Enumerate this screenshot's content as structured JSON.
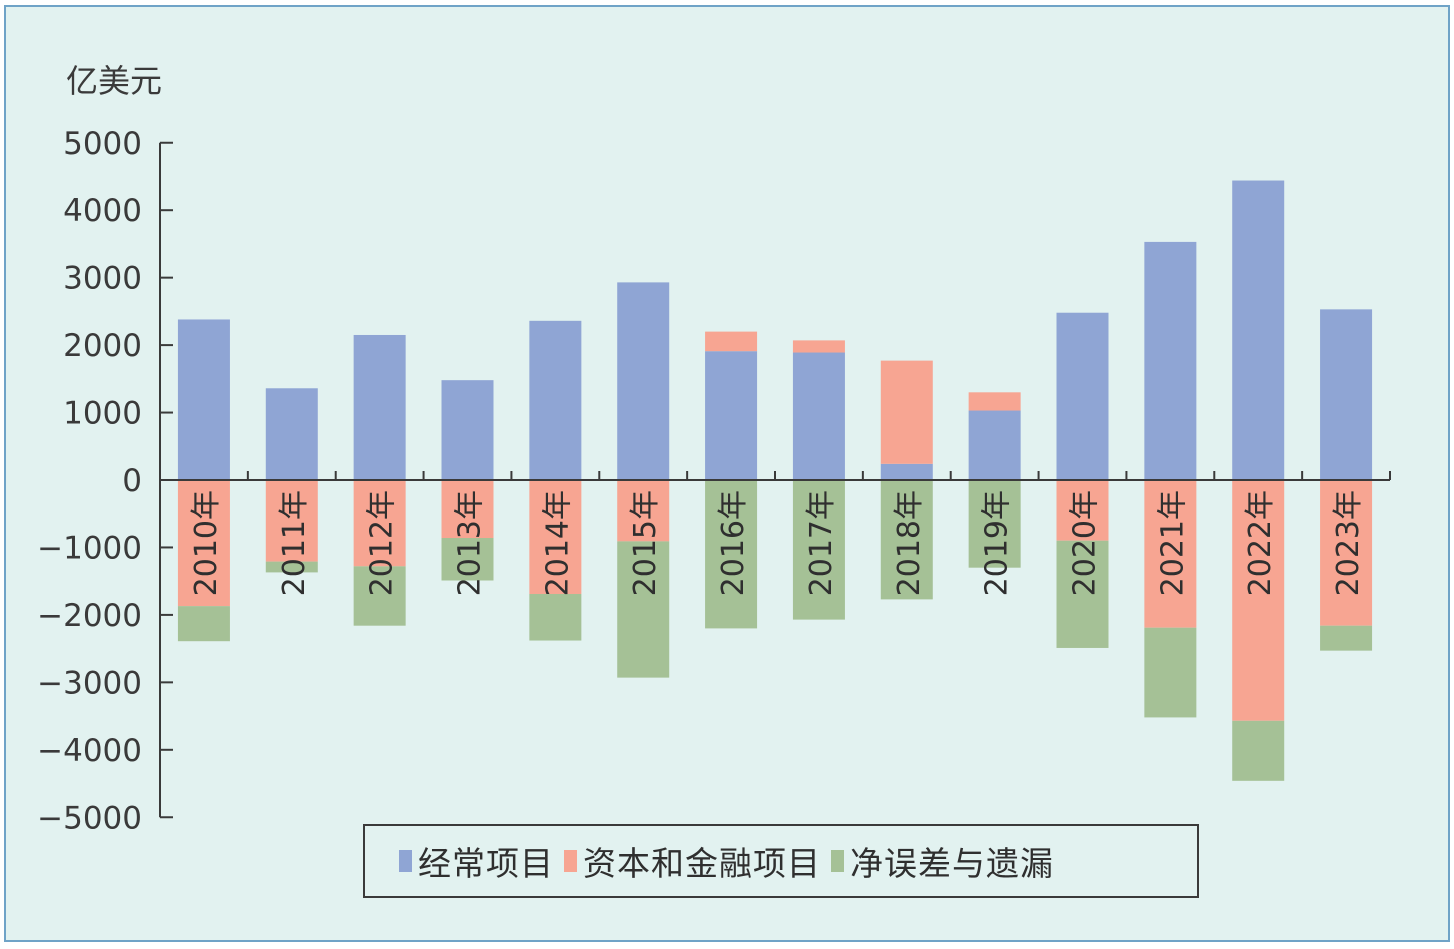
{
  "chart_data": {
    "type": "bar",
    "stacked": true,
    "title": "",
    "ylabel": "亿美元",
    "xlabel": "",
    "ylim": [
      -5000,
      5000
    ],
    "yticks": [
      5000,
      4000,
      3000,
      2000,
      1000,
      0,
      -1000,
      -2000,
      -3000,
      -4000,
      -5000
    ],
    "ytick_labels": [
      "5000",
      "4000",
      "3000",
      "2000",
      "1000",
      "0",
      "−1000",
      "−2000",
      "−3000",
      "−4000",
      "−5000"
    ],
    "grid": false,
    "legend_position": "bottom-center",
    "categories": [
      "2010年",
      "2011年",
      "2012年",
      "2013年",
      "2014年",
      "2015年",
      "2016年",
      "2017年",
      "2018年",
      "2019年",
      "2020年",
      "2021年",
      "2022年",
      "2023年"
    ],
    "series": [
      {
        "name": "经常项目",
        "color": "#8fa5d4",
        "values": [
          2380,
          1360,
          2150,
          1480,
          2360,
          2930,
          1910,
          1890,
          240,
          1030,
          2480,
          3530,
          4440,
          2530
        ]
      },
      {
        "name": "资本和金融项目",
        "color": "#f7a592",
        "values": [
          -1870,
          -1210,
          -1280,
          -860,
          -1690,
          -910,
          290,
          180,
          1530,
          270,
          -900,
          -2190,
          -3570,
          -2160
        ]
      },
      {
        "name": "净误差与遗漏",
        "color": "#a5c196",
        "values": [
          -520,
          -160,
          -880,
          -630,
          -690,
          -2020,
          -2200,
          -2070,
          -1770,
          -1300,
          -1590,
          -1330,
          -890,
          -370
        ]
      }
    ]
  },
  "axis": {
    "unit_label": "亿美元"
  },
  "legend": {
    "items": [
      {
        "label": "经常项目",
        "color": "#8fa5d4"
      },
      {
        "label": "资本和金融项目",
        "color": "#f7a592"
      },
      {
        "label": "净误差与遗漏",
        "color": "#a5c196"
      }
    ]
  },
  "colors": {
    "background": "#e2f2f0",
    "frame_border": "#6fa3c7",
    "axis": "#3a3a3a"
  }
}
